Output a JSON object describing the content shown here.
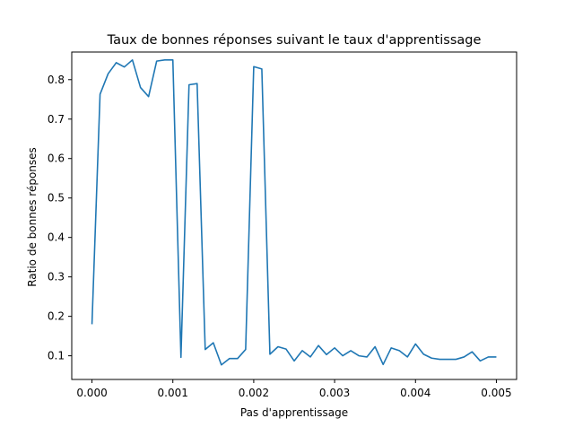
{
  "chart_data": {
    "type": "line",
    "title": "Taux de bonnes réponses suivant le taux d'apprentissage",
    "xlabel": "Pas d'apprentissage",
    "ylabel": "Ratio de bonnes réponses",
    "xlim": [
      -0.00025,
      0.00525
    ],
    "ylim": [
      0.04,
      0.87
    ],
    "grid": false,
    "line_color": "#1f77b4",
    "x_ticks": [
      {
        "value": 0.0,
        "label": "0.000"
      },
      {
        "value": 0.001,
        "label": "0.001"
      },
      {
        "value": 0.002,
        "label": "0.002"
      },
      {
        "value": 0.003,
        "label": "0.003"
      },
      {
        "value": 0.004,
        "label": "0.004"
      },
      {
        "value": 0.005,
        "label": "0.005"
      }
    ],
    "y_ticks": [
      {
        "value": 0.1,
        "label": "0.1"
      },
      {
        "value": 0.2,
        "label": "0.2"
      },
      {
        "value": 0.3,
        "label": "0.3"
      },
      {
        "value": 0.4,
        "label": "0.4"
      },
      {
        "value": 0.5,
        "label": "0.5"
      },
      {
        "value": 0.6,
        "label": "0.6"
      },
      {
        "value": 0.7,
        "label": "0.7"
      },
      {
        "value": 0.8,
        "label": "0.8"
      }
    ],
    "series": [
      {
        "x": [
          1e-08,
          0.0001,
          0.0002,
          0.0003,
          0.0004,
          0.0005,
          0.0006,
          0.0007,
          0.0008,
          0.0009,
          0.001,
          0.0011,
          0.0012,
          0.0013,
          0.0014,
          0.0015,
          0.0016,
          0.0017,
          0.0018,
          0.0019,
          0.002,
          0.0021,
          0.0022,
          0.0023,
          0.0024,
          0.0025,
          0.0026,
          0.0027,
          0.0028,
          0.0029,
          0.003,
          0.0031,
          0.0032,
          0.0033,
          0.0034,
          0.0035,
          0.0036,
          0.0037,
          0.0038,
          0.0039,
          0.004,
          0.0041,
          0.0042,
          0.0043,
          0.0044,
          0.0045,
          0.0046,
          0.0047,
          0.0048,
          0.0049,
          0.005
        ],
        "values": [
          0.18,
          0.763,
          0.815,
          0.843,
          0.832,
          0.85,
          0.78,
          0.757,
          0.847,
          0.85,
          0.85,
          0.096,
          0.787,
          0.79,
          0.116,
          0.133,
          0.077,
          0.093,
          0.093,
          0.116,
          0.833,
          0.827,
          0.104,
          0.123,
          0.117,
          0.087,
          0.113,
          0.097,
          0.126,
          0.103,
          0.12,
          0.1,
          0.113,
          0.1,
          0.097,
          0.123,
          0.078,
          0.12,
          0.113,
          0.097,
          0.13,
          0.104,
          0.094,
          0.091,
          0.091,
          0.091,
          0.097,
          0.11,
          0.087,
          0.097,
          0.097
        ]
      }
    ]
  }
}
